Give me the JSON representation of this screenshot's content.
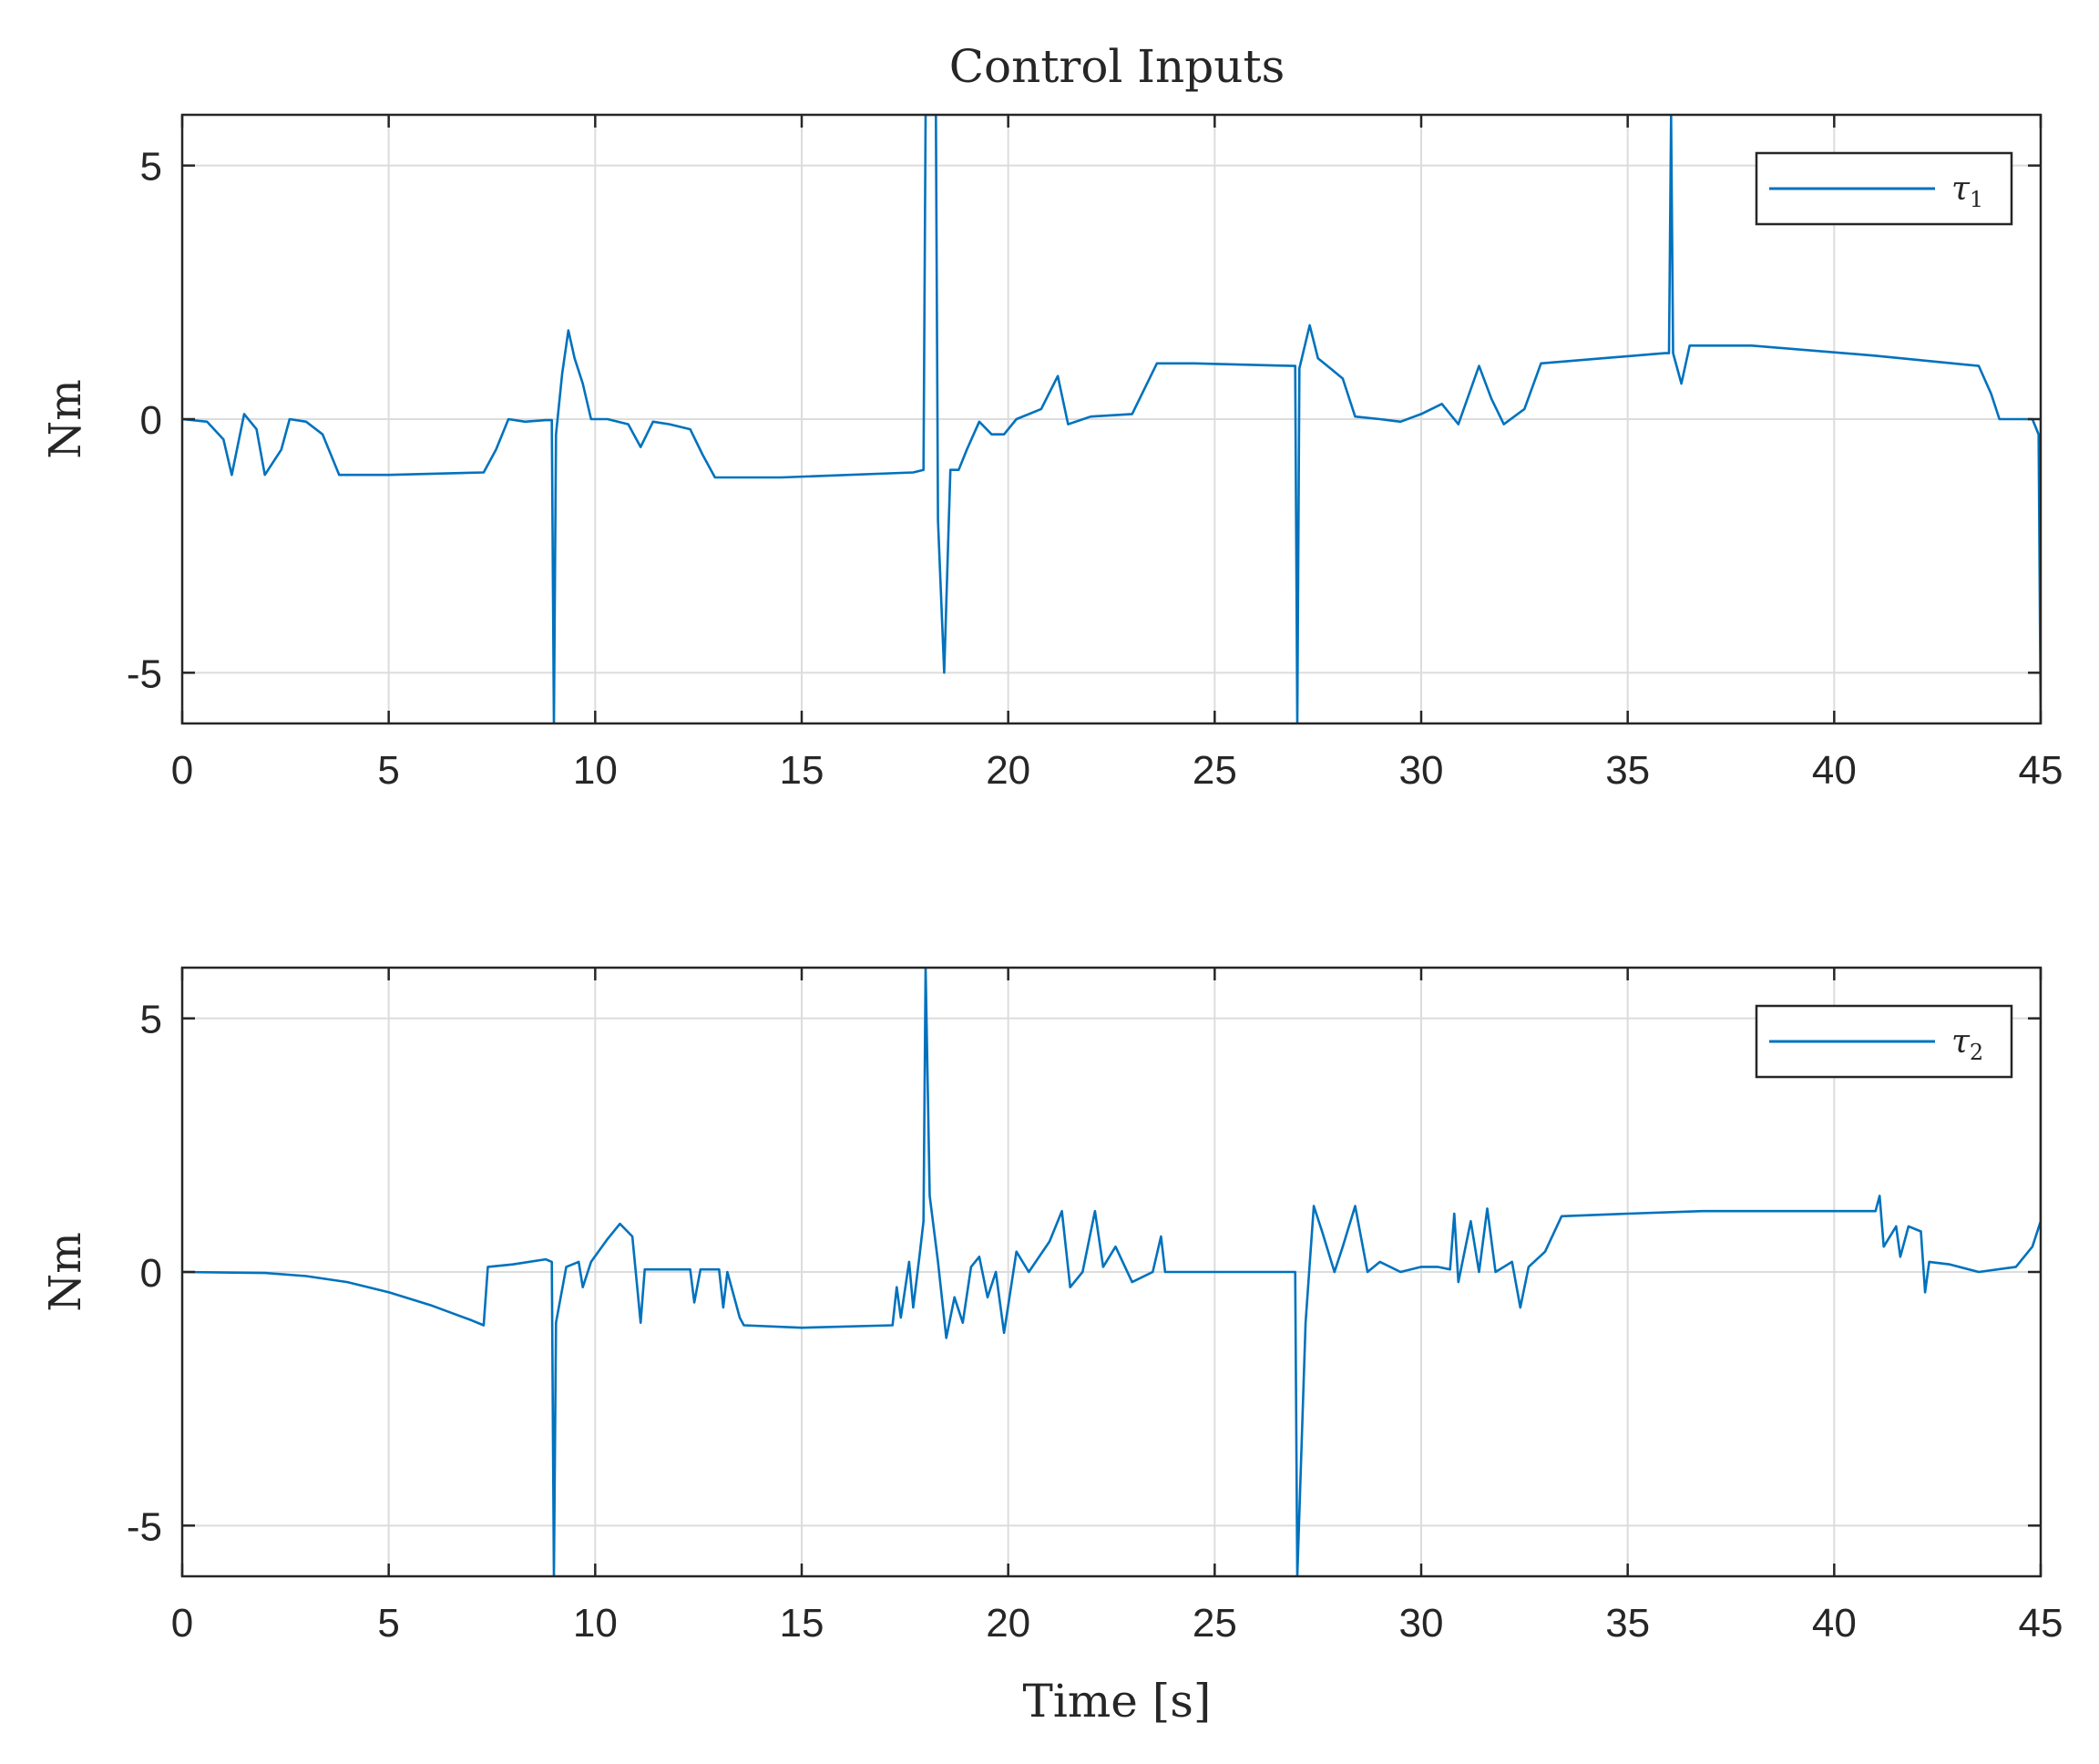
{
  "figure": {
    "title": "Control Inputs",
    "xlabel": "Time [s]",
    "line_color": "#0072bd"
  },
  "chart_data": [
    {
      "type": "line",
      "title": "Control Inputs",
      "xlabel": "",
      "ylabel": "Nm",
      "xlim": [
        0,
        45
      ],
      "ylim": [
        -6,
        6
      ],
      "x_ticks": [
        0,
        5,
        10,
        15,
        20,
        25,
        30,
        35,
        40,
        45
      ],
      "y_ticks": [
        -5,
        0,
        5
      ],
      "grid": true,
      "legend_position": "top-right",
      "series": [
        {
          "name": "τ1",
          "name_base": "τ",
          "name_sub": "1",
          "points": [
            [
              0,
              0
            ],
            [
              0.6,
              -0.05
            ],
            [
              1.0,
              -0.4
            ],
            [
              1.2,
              -1.1
            ],
            [
              1.5,
              0.1
            ],
            [
              1.8,
              -0.2
            ],
            [
              2.0,
              -1.1
            ],
            [
              2.4,
              -0.6
            ],
            [
              2.6,
              0.0
            ],
            [
              3.0,
              -0.05
            ],
            [
              3.4,
              -0.3
            ],
            [
              3.8,
              -1.1
            ],
            [
              5.0,
              -1.1
            ],
            [
              7.3,
              -1.05
            ],
            [
              7.6,
              -0.6
            ],
            [
              7.9,
              0.0
            ],
            [
              8.3,
              -0.05
            ],
            [
              8.8,
              -0.02
            ],
            [
              8.95,
              -0.02
            ],
            [
              9.0,
              -6.0
            ],
            [
              9.05,
              -0.3
            ],
            [
              9.2,
              0.9
            ],
            [
              9.35,
              1.75
            ],
            [
              9.5,
              1.2
            ],
            [
              9.7,
              0.7
            ],
            [
              9.9,
              0.0
            ],
            [
              10.3,
              0.0
            ],
            [
              10.8,
              -0.1
            ],
            [
              11.1,
              -0.55
            ],
            [
              11.4,
              -0.05
            ],
            [
              11.8,
              -0.1
            ],
            [
              12.3,
              -0.2
            ],
            [
              12.6,
              -0.7
            ],
            [
              12.9,
              -1.15
            ],
            [
              14.5,
              -1.15
            ],
            [
              17.7,
              -1.05
            ],
            [
              17.95,
              -1.0
            ],
            [
              18.0,
              6.0
            ],
            [
              18.25,
              6.0
            ],
            [
              18.3,
              -2.0
            ],
            [
              18.45,
              -5.0
            ],
            [
              18.6,
              -1.0
            ],
            [
              18.8,
              -1.0
            ],
            [
              19.0,
              -0.6
            ],
            [
              19.3,
              -0.05
            ],
            [
              19.6,
              -0.3
            ],
            [
              19.9,
              -0.3
            ],
            [
              20.2,
              0.0
            ],
            [
              20.8,
              0.2
            ],
            [
              21.2,
              0.85
            ],
            [
              21.45,
              -0.1
            ],
            [
              22.0,
              0.05
            ],
            [
              23.0,
              0.1
            ],
            [
              23.6,
              1.1
            ],
            [
              24.5,
              1.1
            ],
            [
              26.9,
              1.05
            ],
            [
              26.95,
              1.05
            ],
            [
              27.0,
              -6.0
            ],
            [
              27.05,
              1.0
            ],
            [
              27.3,
              1.85
            ],
            [
              27.5,
              1.2
            ],
            [
              27.8,
              1.0
            ],
            [
              28.1,
              0.8
            ],
            [
              28.4,
              0.05
            ],
            [
              29.0,
              0.0
            ],
            [
              29.5,
              -0.05
            ],
            [
              30.0,
              0.1
            ],
            [
              30.5,
              0.3
            ],
            [
              30.9,
              -0.1
            ],
            [
              31.4,
              1.05
            ],
            [
              31.7,
              0.4
            ],
            [
              32.0,
              -0.1
            ],
            [
              32.5,
              0.2
            ],
            [
              32.9,
              1.1
            ],
            [
              35.9,
              1.3
            ],
            [
              36.0,
              1.3
            ],
            [
              36.05,
              6.0
            ],
            [
              36.1,
              1.3
            ],
            [
              36.3,
              0.7
            ],
            [
              36.5,
              1.45
            ],
            [
              38.0,
              1.45
            ],
            [
              41.0,
              1.25
            ],
            [
              43.5,
              1.05
            ],
            [
              43.8,
              0.5
            ],
            [
              44.0,
              0.0
            ],
            [
              44.8,
              0.0
            ],
            [
              44.95,
              -0.3
            ],
            [
              45.0,
              -6.0
            ]
          ]
        }
      ]
    },
    {
      "type": "line",
      "title": "",
      "xlabel": "Time [s]",
      "ylabel": "Nm",
      "xlim": [
        0,
        45
      ],
      "ylim": [
        -6,
        6
      ],
      "x_ticks": [
        0,
        5,
        10,
        15,
        20,
        25,
        30,
        35,
        40,
        45
      ],
      "y_ticks": [
        -5,
        0,
        5
      ],
      "grid": true,
      "legend_position": "top-right",
      "series": [
        {
          "name": "τ2",
          "name_base": "τ",
          "name_sub": "2",
          "points": [
            [
              0,
              0
            ],
            [
              2.0,
              -0.02
            ],
            [
              3.0,
              -0.08
            ],
            [
              4.0,
              -0.2
            ],
            [
              5.0,
              -0.4
            ],
            [
              6.0,
              -0.65
            ],
            [
              7.0,
              -0.95
            ],
            [
              7.3,
              -1.05
            ],
            [
              7.4,
              0.1
            ],
            [
              8.0,
              0.15
            ],
            [
              8.8,
              0.25
            ],
            [
              8.95,
              0.2
            ],
            [
              9.0,
              -6.0
            ],
            [
              9.05,
              -1.0
            ],
            [
              9.3,
              0.1
            ],
            [
              9.6,
              0.2
            ],
            [
              9.7,
              -0.3
            ],
            [
              9.9,
              0.2
            ],
            [
              10.3,
              0.65
            ],
            [
              10.6,
              0.95
            ],
            [
              10.9,
              0.7
            ],
            [
              11.1,
              -1.0
            ],
            [
              11.2,
              0.05
            ],
            [
              12.3,
              0.05
            ],
            [
              12.4,
              -0.6
            ],
            [
              12.55,
              0.05
            ],
            [
              13.0,
              0.05
            ],
            [
              13.1,
              -0.7
            ],
            [
              13.2,
              0.0
            ],
            [
              13.5,
              -0.9
            ],
            [
              13.6,
              -1.05
            ],
            [
              15.0,
              -1.1
            ],
            [
              17.2,
              -1.05
            ],
            [
              17.3,
              -0.3
            ],
            [
              17.4,
              -0.9
            ],
            [
              17.6,
              0.2
            ],
            [
              17.7,
              -0.7
            ],
            [
              17.85,
              0.3
            ],
            [
              17.95,
              1.0
            ],
            [
              18.0,
              6.0
            ],
            [
              18.1,
              1.5
            ],
            [
              18.3,
              0.2
            ],
            [
              18.5,
              -1.3
            ],
            [
              18.7,
              -0.5
            ],
            [
              18.9,
              -1.0
            ],
            [
              19.1,
              0.1
            ],
            [
              19.3,
              0.3
            ],
            [
              19.5,
              -0.5
            ],
            [
              19.7,
              0.0
            ],
            [
              19.9,
              -1.2
            ],
            [
              20.2,
              0.4
            ],
            [
              20.5,
              0.0
            ],
            [
              21.0,
              0.6
            ],
            [
              21.3,
              1.2
            ],
            [
              21.5,
              -0.3
            ],
            [
              21.8,
              0.0
            ],
            [
              22.1,
              1.2
            ],
            [
              22.3,
              0.1
            ],
            [
              22.6,
              0.5
            ],
            [
              23.0,
              -0.2
            ],
            [
              23.5,
              0.0
            ],
            [
              23.7,
              0.7
            ],
            [
              23.8,
              0.0
            ],
            [
              25.0,
              0.0
            ],
            [
              26.95,
              0.0
            ],
            [
              27.0,
              -6.0
            ],
            [
              27.2,
              -1.0
            ],
            [
              27.4,
              1.3
            ],
            [
              27.6,
              0.8
            ],
            [
              27.9,
              0.0
            ],
            [
              28.1,
              0.5
            ],
            [
              28.4,
              1.3
            ],
            [
              28.7,
              0.0
            ],
            [
              29.0,
              0.2
            ],
            [
              29.5,
              0.0
            ],
            [
              30.0,
              0.1
            ],
            [
              30.4,
              0.1
            ],
            [
              30.7,
              0.05
            ],
            [
              30.8,
              1.15
            ],
            [
              30.9,
              -0.2
            ],
            [
              31.2,
              1.0
            ],
            [
              31.4,
              0.0
            ],
            [
              31.6,
              1.25
            ],
            [
              31.8,
              0.0
            ],
            [
              32.2,
              0.2
            ],
            [
              32.4,
              -0.7
            ],
            [
              32.6,
              0.1
            ],
            [
              33.0,
              0.4
            ],
            [
              33.4,
              1.1
            ],
            [
              35.0,
              1.15
            ],
            [
              36.8,
              1.2
            ],
            [
              38.0,
              1.2
            ],
            [
              40.0,
              1.2
            ],
            [
              41.0,
              1.2
            ],
            [
              41.1,
              1.5
            ],
            [
              41.2,
              0.5
            ],
            [
              41.5,
              0.9
            ],
            [
              41.6,
              0.3
            ],
            [
              41.8,
              0.9
            ],
            [
              42.1,
              0.8
            ],
            [
              42.2,
              -0.4
            ],
            [
              42.3,
              0.2
            ],
            [
              42.8,
              0.15
            ],
            [
              43.5,
              0.0
            ],
            [
              44.4,
              0.1
            ],
            [
              44.8,
              0.5
            ],
            [
              45.0,
              1.0
            ],
            [
              45.0,
              6.0
            ]
          ]
        }
      ]
    }
  ]
}
